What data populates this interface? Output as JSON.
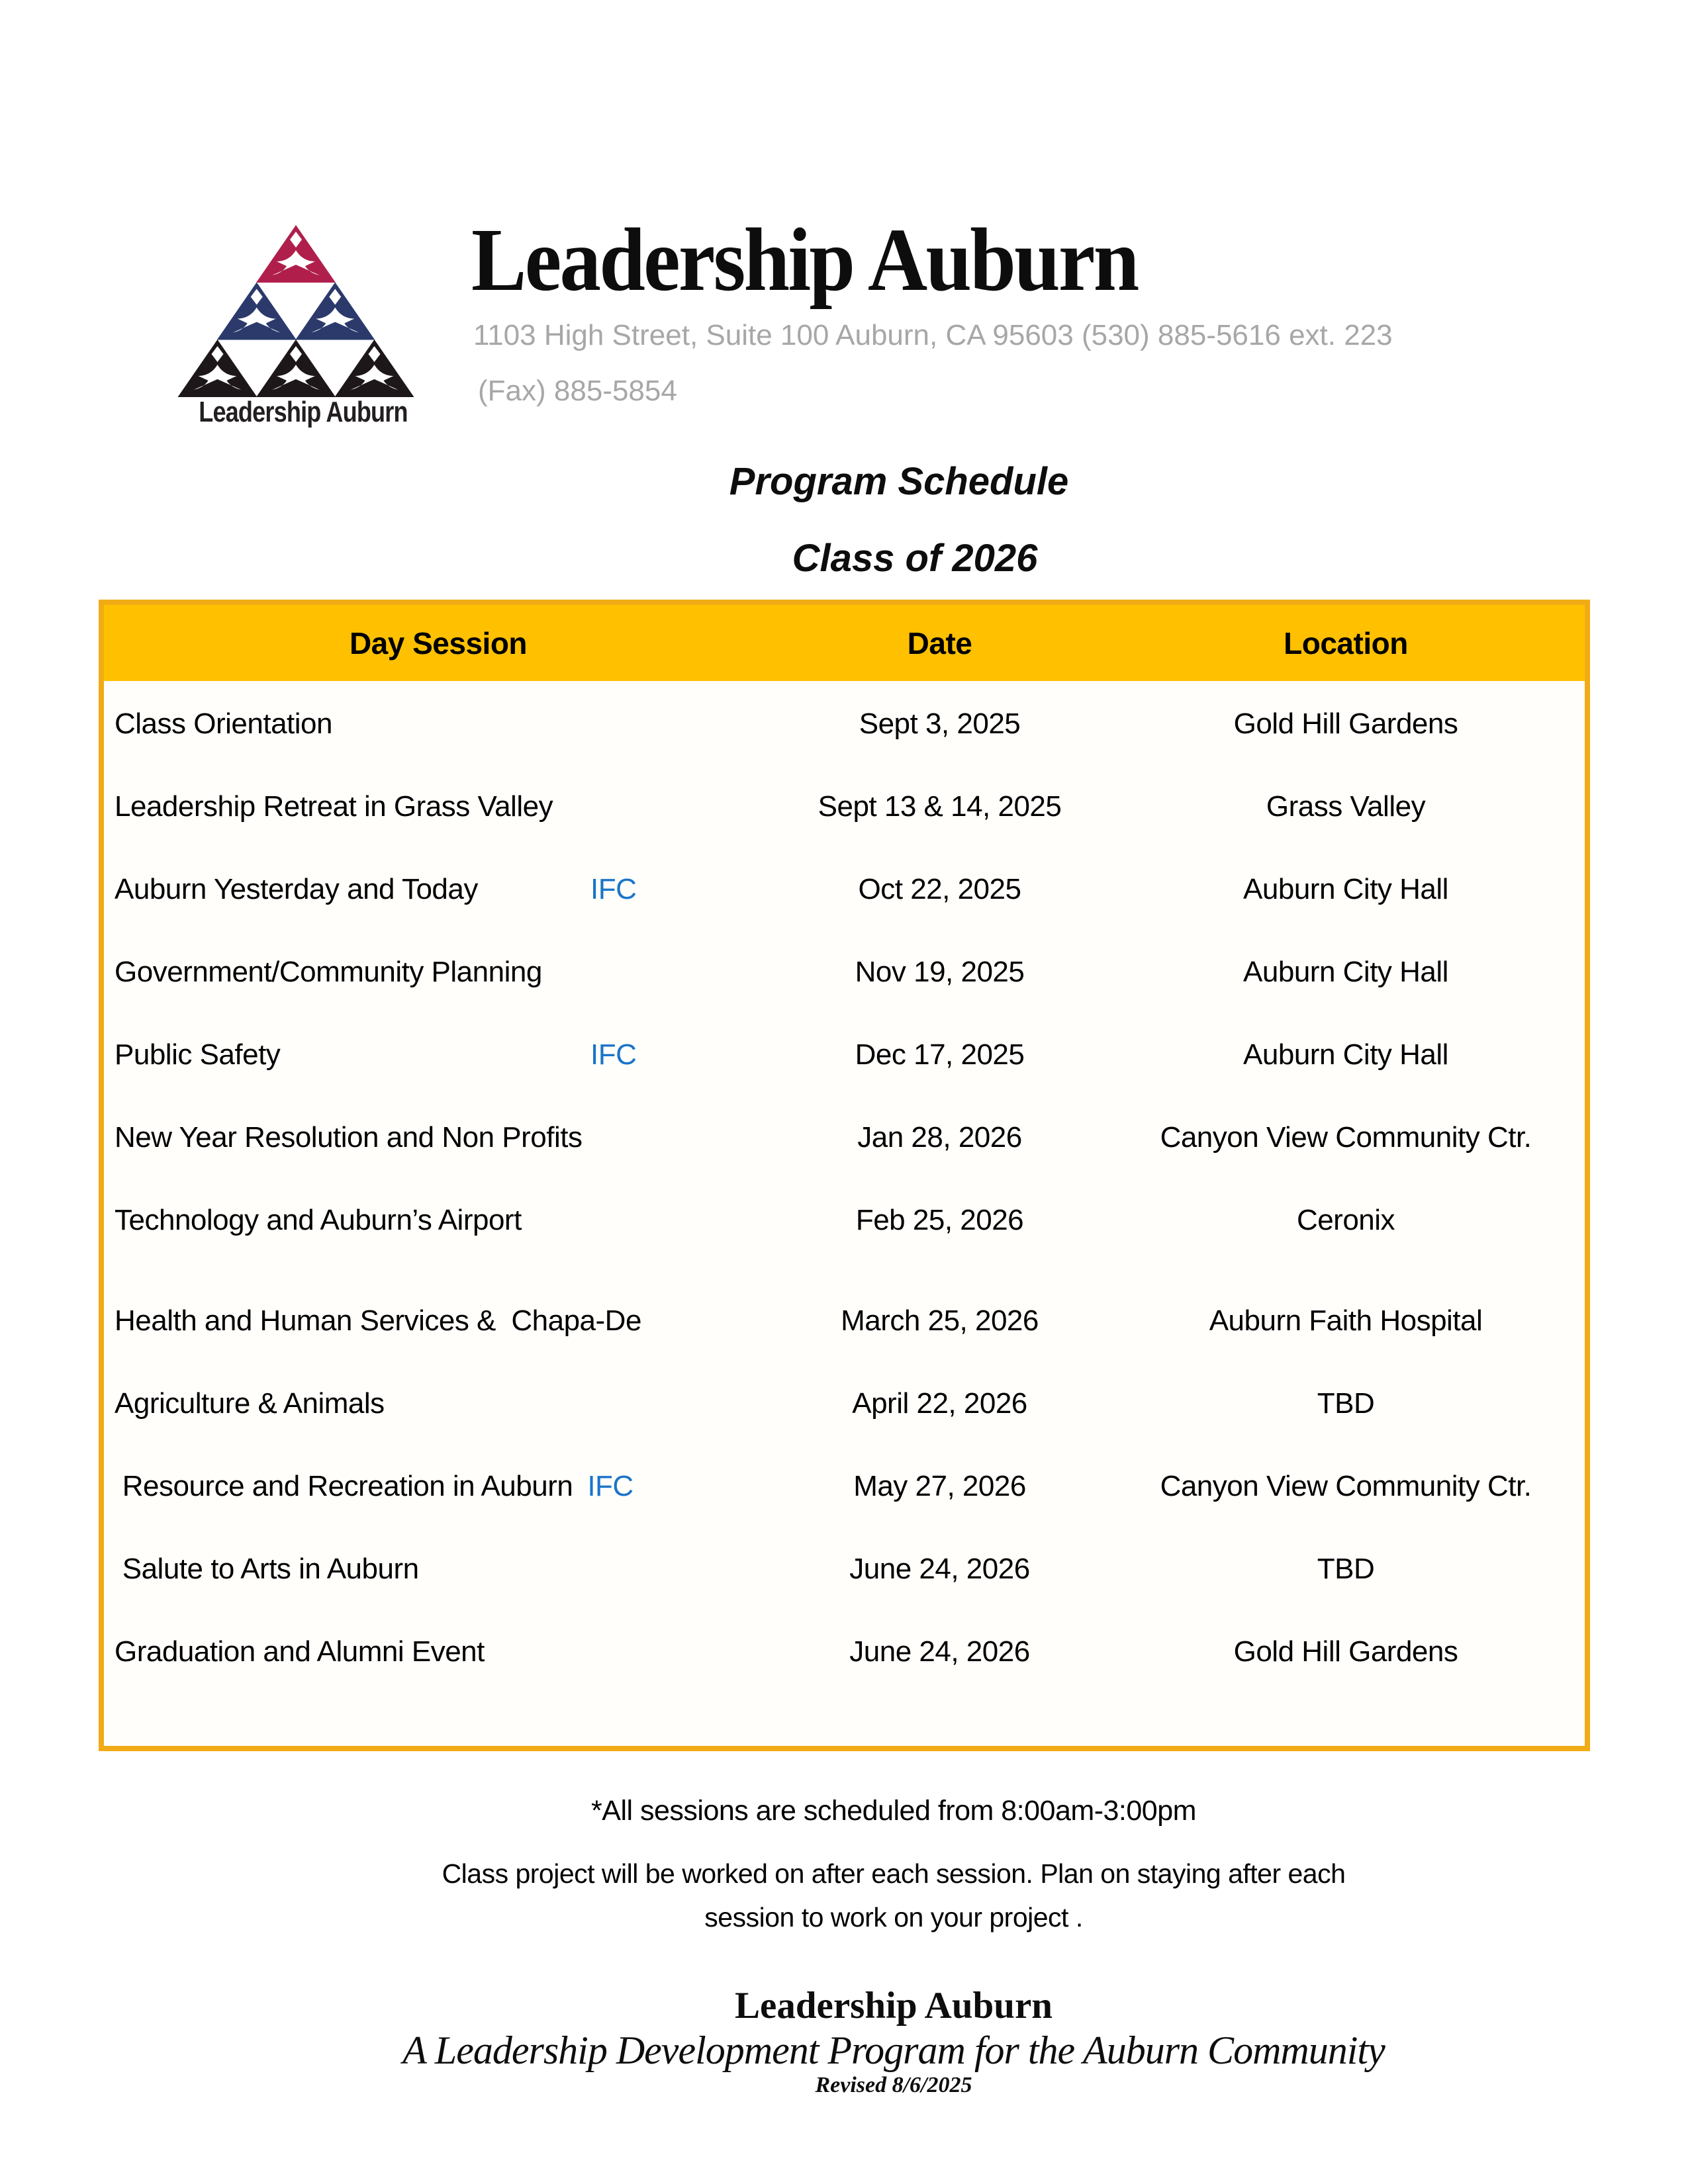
{
  "header": {
    "logo_caption": "Leadership Auburn",
    "title": "Leadership Auburn",
    "address_line": "1103 High Street, Suite 100 Auburn, CA  95603 (530) 885-5616 ext. 223",
    "fax_line": "(Fax) 885-5854"
  },
  "headings": {
    "program_schedule": "Program Schedule",
    "class_of": "Class of 2026"
  },
  "table": {
    "columns": [
      "Day Session",
      "Date",
      "Location"
    ],
    "ifc_label": "IFC",
    "rows": [
      {
        "session": "Class Orientation",
        "ifc": null,
        "date": "Sept 3, 2025",
        "location": "Gold Hill Gardens"
      },
      {
        "session": "Leadership Retreat in Grass Valley",
        "ifc": null,
        "date": "Sept 13 & 14, 2025",
        "location": "Grass Valley"
      },
      {
        "session": "Auburn Yesterday and Today",
        "ifc": "tab",
        "date": "Oct 22, 2025",
        "location": "Auburn City Hall"
      },
      {
        "session": "Government/Community Planning",
        "ifc": null,
        "date": "Nov 19, 2025",
        "location": "Auburn City Hall"
      },
      {
        "session": "Public Safety",
        "ifc": "tab",
        "date": "Dec 17, 2025",
        "location": "Auburn City Hall"
      },
      {
        "session": "New Year Resolution and Non Profits",
        "ifc": null,
        "date": "Jan 28, 2026",
        "location": "Canyon View Community Ctr."
      },
      {
        "session": "Technology and Auburn’s Airport",
        "ifc": null,
        "date": "Feb 25, 2026",
        "location": "Ceronix"
      },
      {
        "session": "Health and Human Services &  Chapa-De",
        "ifc": null,
        "date": "March 25, 2026",
        "location": "Auburn Faith Hospital"
      },
      {
        "session": "Agriculture & Animals",
        "ifc": null,
        "date": "April 22, 2026",
        "location": "TBD"
      },
      {
        "session": " Resource and Recreation in Auburn",
        "ifc": "inline",
        "date": "May 27, 2026",
        "location": "Canyon View Community Ctr."
      },
      {
        "session": " Salute to Arts in Auburn",
        "ifc": null,
        "date": "June 24, 2026",
        "location": "TBD"
      },
      {
        "session": "Graduation and Alumni Event",
        "ifc": null,
        "date": "June 24, 2026",
        "location": "Gold Hill Gardens"
      }
    ]
  },
  "notes": {
    "sessions_note": "*All sessions are scheduled from 8:00am-3:00pm",
    "project_note_line1": "Class project will be worked on after each session. Plan on staying after each",
    "project_note_line2": "session to work on your project ."
  },
  "footer": {
    "org_name": "Leadership Auburn",
    "tagline": "A Leadership Development Program for the Auburn Community",
    "revised": "Revised 8/6/2025"
  },
  "colors": {
    "table_header_gold": "#FFC000",
    "table_border_gold": "#F1AC15",
    "ifc_blue": "#1B74C8",
    "address_gray": "#A7A7A7",
    "logo_crimson": "#B01F4C",
    "logo_navy": "#2B3A6B",
    "logo_black": "#1D1719"
  }
}
